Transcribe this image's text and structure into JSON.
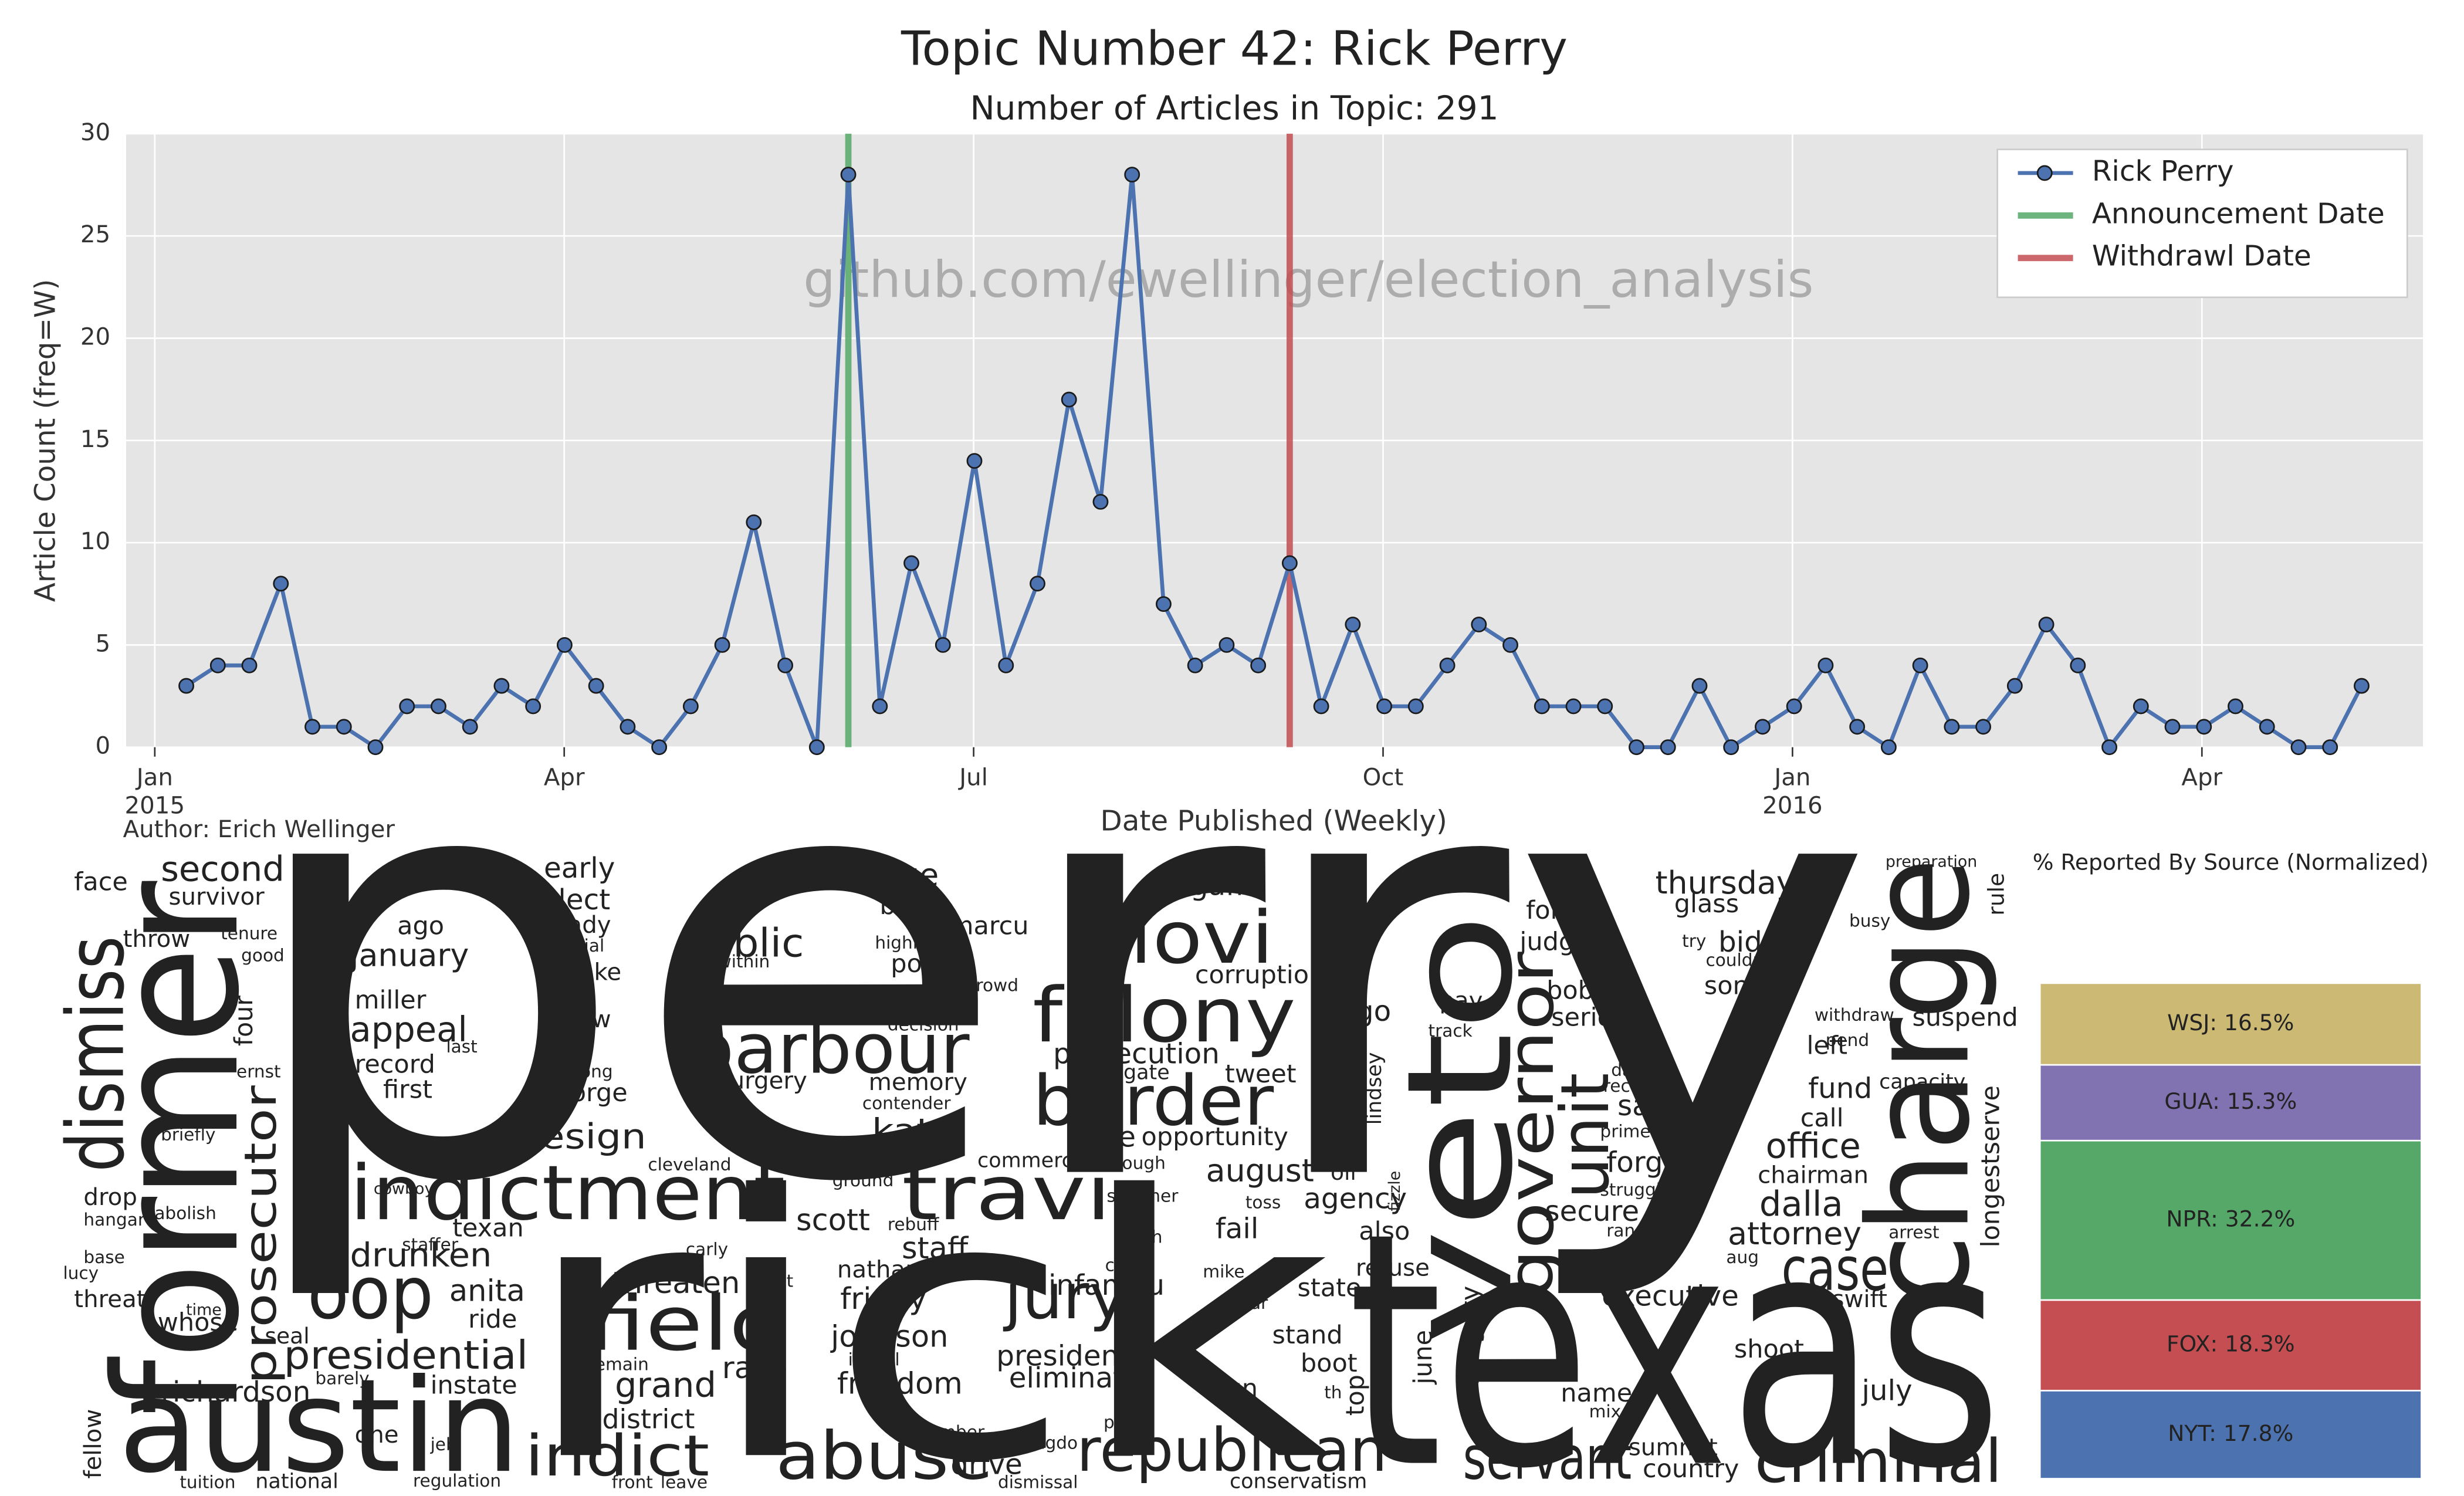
{
  "chart_data": [
    {
      "type": "line",
      "title": "Topic Number 42: Rick Perry",
      "subtitle": "Number of Articles in Topic: 291",
      "watermark": "github.com/ewellinger/election_analysis",
      "author": "Author: Erich Wellinger",
      "x_label": "Date Published (Weekly)",
      "y_label": "Article Count (freq=W)",
      "x": [
        0.231,
        0.462,
        0.693,
        0.924,
        1.155,
        1.386,
        1.617,
        1.848,
        2.079,
        2.31,
        2.541,
        2.772,
        3.003,
        3.234,
        3.465,
        3.696,
        3.927,
        4.158,
        4.389,
        4.62,
        4.851,
        5.082,
        5.313,
        5.544,
        5.775,
        6.006,
        6.237,
        6.468,
        6.699,
        6.93,
        7.161,
        7.392,
        7.623,
        7.854,
        8.085,
        8.316,
        8.547,
        8.778,
        9.009,
        9.24,
        9.471,
        9.702,
        9.933,
        10.164,
        10.395,
        10.626,
        10.857,
        11.088,
        11.319,
        11.55,
        11.781,
        12.012,
        12.243,
        12.474,
        12.705,
        12.936,
        13.167,
        13.398,
        13.629,
        13.86,
        14.091,
        14.322,
        14.553,
        14.784,
        15.015,
        15.246,
        15.477,
        15.708,
        15.939,
        16.17
      ],
      "series": [
        {
          "name": "Rick Perry",
          "color": "#4c72b0",
          "values": [
            3,
            4,
            4,
            8,
            1,
            1,
            0,
            2,
            2,
            1,
            3,
            2,
            5,
            3,
            1,
            0,
            2,
            5,
            11,
            4,
            0,
            28,
            2,
            9,
            5,
            14,
            4,
            8,
            17,
            12,
            28,
            7,
            4,
            5,
            4,
            9,
            2,
            6,
            2,
            2,
            4,
            6,
            5,
            2,
            2,
            2,
            0,
            0,
            3,
            0,
            1,
            2,
            4,
            1,
            0,
            4,
            1,
            1,
            3,
            6,
            4,
            0,
            2,
            1,
            1,
            2,
            1,
            0,
            0,
            3
          ]
        }
      ],
      "vlines": [
        {
          "name": "Announcement Date",
          "x": 5.082,
          "color": "#55a868"
        },
        {
          "name": "Withdrawl Date",
          "x": 8.316,
          "color": "#c44e52"
        }
      ],
      "xlim": [
        -0.21,
        16.62
      ],
      "xticks": [
        {
          "value": 0,
          "label": "Jan"
        },
        {
          "value": 3,
          "label": "Apr"
        },
        {
          "value": 6,
          "label": "Jul"
        },
        {
          "value": 9,
          "label": "Oct"
        },
        {
          "value": 12,
          "label": "Jan"
        },
        {
          "value": 15,
          "label": "Apr"
        }
      ],
      "x_year_labels": [
        {
          "value": 0,
          "label": "2015"
        },
        {
          "value": 12,
          "label": "2016"
        }
      ],
      "ylim": [
        0,
        30
      ],
      "yticks": [
        0,
        5,
        10,
        15,
        20,
        25,
        30
      ],
      "grid": true,
      "legend": "upper right"
    },
    {
      "type": "bar",
      "stacked": true,
      "title": "% Reported By Source (Normalized)",
      "values": [
        16.5,
        15.3,
        32.2,
        18.3,
        17.8
      ],
      "value_labels": [
        "WSJ: 16.5%",
        "GUA: 15.3%",
        "NPR: 32.2%",
        "FOX: 18.3%",
        "NYT: 17.8%"
      ],
      "colors": [
        "#ccb974",
        "#8172b2",
        "#55a868",
        "#c44e52",
        "#4c72b0"
      ]
    }
  ],
  "word_cloud": {
    "words": [
      "perry",
      "rick",
      "texas",
      "former",
      "austin",
      "veto",
      "charge",
      "dismiss",
      "indictment",
      "barbour",
      "felony",
      "clovi",
      "border",
      "travi",
      "field",
      "abuse",
      "oop",
      "jury",
      "governor",
      "unit",
      "case",
      "criminal",
      "servant",
      "republican",
      "indict",
      "prosecutor",
      "presidential",
      "drunken",
      "public",
      "resign",
      "katy",
      "scott",
      "staff",
      "threaten",
      "friday",
      "johnson",
      "freedom",
      "race",
      "grand",
      "district",
      "anita",
      "ride",
      "instate",
      "richardson",
      "second",
      "survivor",
      "face",
      "throw",
      "tenure",
      "good",
      "four",
      "ernst",
      "briefly",
      "drop",
      "hangar",
      "abolish",
      "base",
      "lucy",
      "threat",
      "time",
      "whose",
      "seal",
      "barely",
      "fellow",
      "tuition",
      "national",
      "jeb",
      "one",
      "regulation",
      "staffer",
      "texan",
      "cowboy",
      "early",
      "elect",
      "ready",
      "special",
      "make",
      "ago",
      "january",
      "miller",
      "appeal",
      "last",
      "record",
      "first",
      "low",
      "include",
      "long",
      "george",
      "within",
      "surgery",
      "stage",
      "back",
      "marcu",
      "highlight",
      "power",
      "crowd",
      "year",
      "decision",
      "memory",
      "contender",
      "dawson",
      "ground",
      "rebuff",
      "carly",
      "nathan",
      "hunt",
      "illegal",
      "remain",
      "remember",
      "wrongdo",
      "dismissal",
      "drive",
      "front",
      "leave",
      "cleveland",
      "prosecution",
      "relegate",
      "lone",
      "opportunity",
      "enough",
      "summer",
      "witch",
      "creek",
      "infamou",
      "president",
      "eliminate",
      "commerce",
      "paint",
      "gaffe",
      "corruption",
      "tweet",
      "august",
      "oil",
      "agency",
      "fail",
      "toss",
      "mike",
      "star",
      "state",
      "refuse",
      "also",
      "stand",
      "boot",
      "run",
      "th",
      "top",
      "conservatism",
      "go",
      "lindsey",
      "fizzle",
      "integrity",
      "june",
      "pay",
      "track",
      "judge",
      "forum",
      "bobby",
      "seriou",
      "recent",
      "primetime",
      "forget",
      "struggle",
      "secure",
      "sam",
      "da",
      "rand",
      "executive",
      "name",
      "mix",
      "summit",
      "country",
      "july",
      "shoot",
      "three",
      "swift",
      "attorney",
      "aug",
      "dalla",
      "chairman",
      "office",
      "call",
      "fund",
      "left",
      "song",
      "couldnt",
      "try",
      "bid",
      "glass",
      "thursday",
      "busy",
      "preparation",
      "capacity",
      "pend",
      "withdraw",
      "suspend",
      "longestserve",
      "rule",
      "arrest"
    ],
    "colors": [
      "#1ee36b",
      "#1ee35a",
      "#58e020",
      "#1a9de0",
      "#1ee36b",
      "#20e0c0",
      "#40e040",
      "#28c0e0",
      "#b8e020",
      "#e02820",
      "#2048e0",
      "#2a78d8",
      "#70d820",
      "#e04818",
      "#30d8b0",
      "#28d090",
      "#2aa0e0",
      "#40b8e0",
      "#58c840",
      "#2078d8",
      "#50d090",
      "#28d060",
      "#20c8a0",
      "#e0a020",
      "#60c840",
      "#d8b820",
      "#50c840",
      "#70d028",
      "#88d820",
      "#20c8b0",
      "#c8c020",
      "#20a8b8",
      "#88c820",
      "#40c070",
      "#60c030",
      "#28b0a0",
      "#2080c8",
      "#20b890",
      "#d03010",
      "#c8b020",
      "#20c0a0",
      "#40b8d0",
      "#88c040",
      "#2048c0",
      "#20b8e0",
      "#88b828",
      "#60c060",
      "#2060c8",
      "#88c040",
      "#2080d0",
      "#d08020",
      "#20c0a0",
      "#40c0b0",
      "#a0c020",
      "#d04020",
      "#88c040",
      "#c8d040",
      "#c8c040",
      "#d03020",
      "#c8d040",
      "#3090d0",
      "#88c020",
      "#c8d040",
      "#d08020",
      "#d0b040",
      "#c8a030",
      "#88c040",
      "#c8b020",
      "#c8b020",
      "#d08020",
      "#d0c040",
      "#2060c0",
      "#40c090",
      "#40a0d0",
      "#2050c0",
      "#20c0c0",
      "#c8b020",
      "#e08020",
      "#2060c8",
      "#88c040",
      "#5020c0",
      "#20c0c0",
      "#d04020",
      "#20c0c0",
      "#c8b020",
      "#20b0c0",
      "#2060c0",
      "#d08020",
      "#88c040",
      "#2060c0",
      "#c8b020",
      "#2070c0",
      "#20c0d0",
      "#e08020",
      "#5020b0",
      "#d04020",
      "#88c040",
      "#20c0c0",
      "#40c080",
      "#2050c0",
      "#2050c0",
      "#20c0c0",
      "#2080d0",
      "#c8b040",
      "#20b0a0",
      "#c8b040",
      "#20a0c0",
      "#2060c0",
      "#2050c0",
      "#d08020",
      "#d04020",
      "#20c0c0",
      "#d06030",
      "#2050c0",
      "#d04020",
      "#a0d040",
      "#20a0c0",
      "#2040c0",
      "#60c040",
      "#40c0c0",
      "#c8d040",
      "#c8d040",
      "#d04020",
      "#2050c0",
      "#2050d0",
      "#2050c0",
      "#40c0d0",
      "#40c0c0",
      "#2070c0",
      "#d04020",
      "#2040c0",
      "#20b080",
      "#88c040",
      "#c8b040",
      "#c8b020",
      "#2060c0",
      "#c8d040",
      "#c8b040",
      "#40c0d0",
      "#5020c0",
      "#c8b020",
      "#88c040",
      "#d04020",
      "#88c040",
      "#d08020",
      "#c8b020",
      "#d08020",
      "#d04020",
      "#d04020",
      "#20c0c0",
      "#d04020",
      "#2050c0",
      "#20c0c0",
      "#d04020",
      "#d03010",
      "#c8b020",
      "#2070c0",
      "#d03010",
      "#40c060",
      "#40c060",
      "#40c080",
      "#c8b040",
      "#20a0d0",
      "#c8b020",
      "#c8b040",
      "#c8b020",
      "#20c0c0",
      "#5020c0",
      "#c8b040",
      "#c8b020",
      "#c8b020",
      "#c8b040",
      "#d04020",
      "#c8d040",
      "#c8b040",
      "#2060c0",
      "#2050c0",
      "#40c0a0",
      "#40b0d0",
      "#d03010",
      "#2050c0",
      "#c8b020",
      "#88c040",
      "#c8d040",
      "#2050c0",
      "#2050c0",
      "#d08020",
      "#88c040",
      "#20a0d0",
      "#40c0d0",
      "#c8b040",
      "#c8b040",
      "#d08020",
      "#40c0c0",
      "#2060c0",
      "#5040d0",
      "#2040c0",
      "#d04020"
    ]
  }
}
